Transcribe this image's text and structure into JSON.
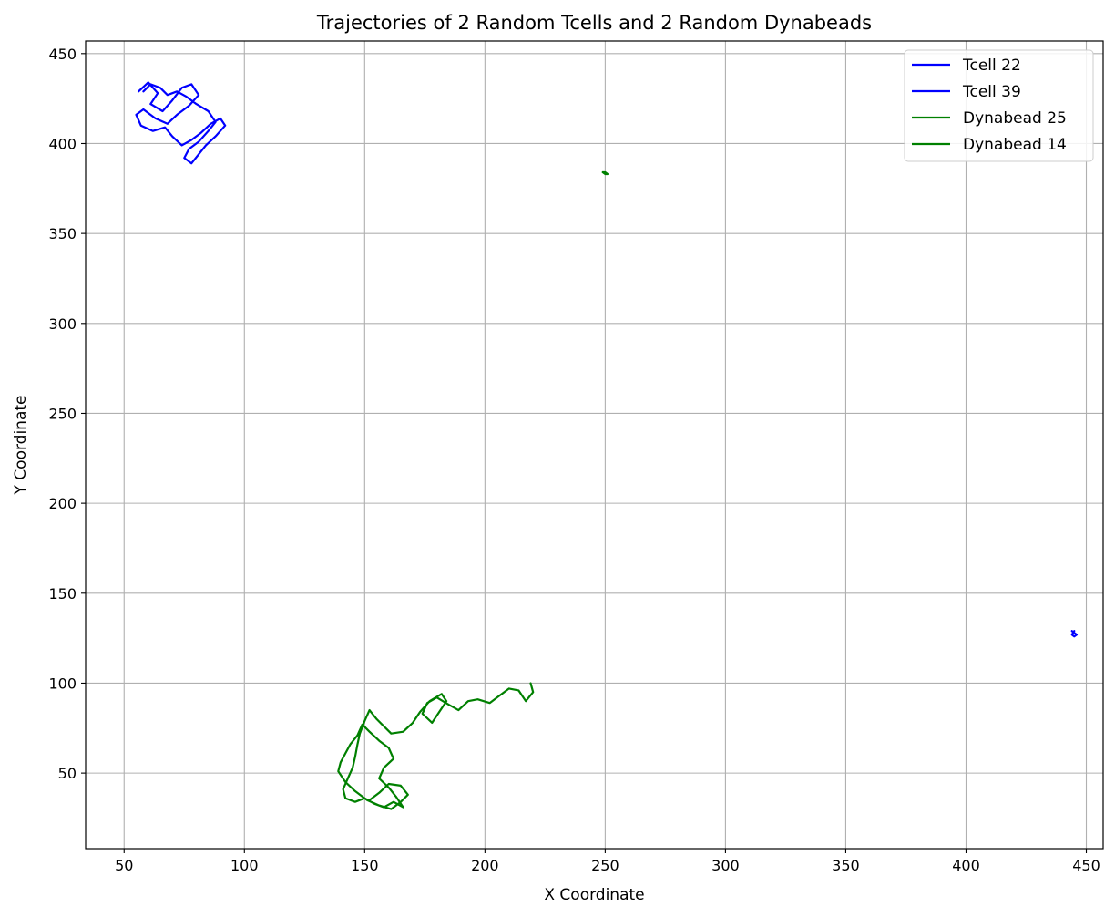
{
  "chart_data": {
    "type": "line",
    "title": "Trajectories of 2 Random Tcells and 2 Random Dynabeads",
    "xlabel": "X Coordinate",
    "ylabel": "Y Coordinate",
    "xlim": [
      34,
      457
    ],
    "ylim": [
      8,
      457
    ],
    "xticks": [
      50,
      100,
      150,
      200,
      250,
      300,
      350,
      400,
      450
    ],
    "yticks": [
      50,
      100,
      150,
      200,
      250,
      300,
      350,
      400,
      450
    ],
    "grid": true,
    "legend_position": "top-right",
    "series": [
      {
        "name": "Tcell 22",
        "color": "#0000ff",
        "points": [
          [
            56,
            429
          ],
          [
            60,
            434
          ],
          [
            64,
            428
          ],
          [
            61,
            422
          ],
          [
            66,
            418
          ],
          [
            70,
            424
          ],
          [
            74,
            431
          ],
          [
            78,
            433
          ],
          [
            81,
            427
          ],
          [
            77,
            421
          ],
          [
            72,
            416
          ],
          [
            68,
            411
          ],
          [
            63,
            414
          ],
          [
            58,
            419
          ],
          [
            55,
            416
          ],
          [
            57,
            410
          ],
          [
            62,
            407
          ],
          [
            67,
            409
          ],
          [
            70,
            404
          ],
          [
            74,
            399
          ],
          [
            78,
            402
          ],
          [
            82,
            406
          ],
          [
            86,
            411
          ],
          [
            90,
            414
          ],
          [
            92,
            410
          ],
          [
            88,
            404
          ],
          [
            84,
            399
          ],
          [
            81,
            394
          ],
          [
            78,
            389
          ],
          [
            75,
            392
          ],
          [
            77,
            397
          ],
          [
            81,
            401
          ],
          [
            85,
            407
          ],
          [
            88,
            412
          ],
          [
            85,
            418
          ],
          [
            80,
            422
          ],
          [
            76,
            426
          ],
          [
            72,
            429
          ],
          [
            68,
            427
          ],
          [
            65,
            431
          ],
          [
            61,
            433
          ],
          [
            58,
            429
          ]
        ]
      },
      {
        "name": "Tcell 39",
        "color": "#0000ff",
        "points": [
          [
            444,
            129
          ],
          [
            445,
            128
          ],
          [
            446,
            127
          ],
          [
            445,
            126
          ],
          [
            444,
            127
          ],
          [
            445,
            129
          ]
        ]
      },
      {
        "name": "Dynabead 25",
        "color": "#008000",
        "points": [
          [
            249,
            384
          ],
          [
            250,
            384
          ],
          [
            251,
            383
          ],
          [
            250,
            383
          ],
          [
            249,
            384
          ]
        ]
      },
      {
        "name": "Dynabead 14",
        "color": "#008000",
        "points": [
          [
            219,
            100
          ],
          [
            220,
            95
          ],
          [
            217,
            90
          ],
          [
            214,
            96
          ],
          [
            210,
            97
          ],
          [
            206,
            93
          ],
          [
            202,
            89
          ],
          [
            197,
            91
          ],
          [
            193,
            90
          ],
          [
            189,
            85
          ],
          [
            185,
            88
          ],
          [
            180,
            92
          ],
          [
            176,
            89
          ],
          [
            174,
            83
          ],
          [
            178,
            78
          ],
          [
            181,
            84
          ],
          [
            184,
            90
          ],
          [
            182,
            94
          ],
          [
            177,
            90
          ],
          [
            173,
            84
          ],
          [
            170,
            78
          ],
          [
            166,
            73
          ],
          [
            161,
            72
          ],
          [
            158,
            76
          ],
          [
            155,
            80
          ],
          [
            152,
            85
          ],
          [
            150,
            79
          ],
          [
            148,
            72
          ],
          [
            147,
            66
          ],
          [
            146,
            59
          ],
          [
            145,
            53
          ],
          [
            143,
            47
          ],
          [
            141,
            41
          ],
          [
            142,
            36
          ],
          [
            146,
            34
          ],
          [
            150,
            36
          ],
          [
            154,
            33
          ],
          [
            158,
            31
          ],
          [
            162,
            34
          ],
          [
            166,
            31
          ],
          [
            163,
            37
          ],
          [
            160,
            42
          ],
          [
            156,
            47
          ],
          [
            158,
            53
          ],
          [
            162,
            58
          ],
          [
            160,
            64
          ],
          [
            156,
            68
          ],
          [
            152,
            73
          ],
          [
            149,
            77
          ],
          [
            147,
            71
          ],
          [
            144,
            66
          ],
          [
            142,
            61
          ],
          [
            140,
            56
          ],
          [
            139,
            51
          ],
          [
            142,
            45
          ],
          [
            146,
            40
          ],
          [
            151,
            35
          ],
          [
            156,
            32
          ],
          [
            161,
            30
          ],
          [
            165,
            34
          ],
          [
            168,
            38
          ],
          [
            165,
            43
          ],
          [
            160,
            44
          ],
          [
            156,
            39
          ],
          [
            152,
            35
          ]
        ]
      }
    ]
  }
}
